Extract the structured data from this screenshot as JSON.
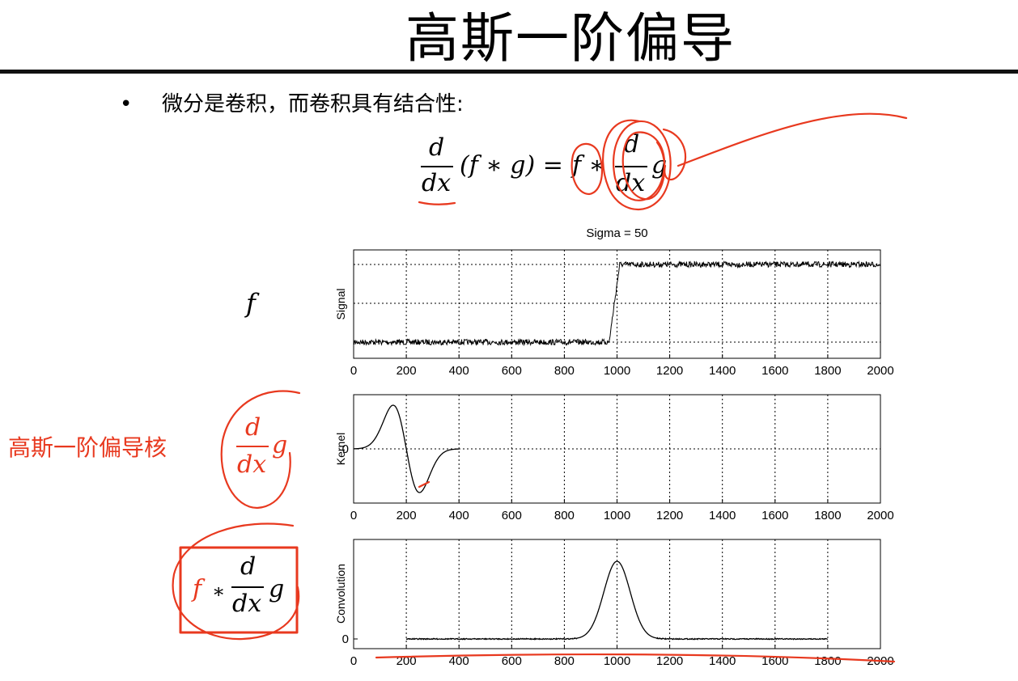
{
  "slide": {
    "title": "高斯一阶偏导",
    "bullet_marker": "•",
    "bullet_text": "微分是卷积，而卷积具有结合性:"
  },
  "equation": {
    "lhs_num": "d",
    "lhs_den": "dx",
    "lhs_body": "(f ∗ g) =",
    "rhs_f": "f ∗",
    "rhs_num": "d",
    "rhs_den": "dx",
    "rhs_g": "g"
  },
  "side_labels": {
    "row1": "f",
    "row2_text": "高斯一阶偏导核",
    "row2_num": "d",
    "row2_den": "dx",
    "row2_g": "g",
    "row3_f": "f",
    "row3_op": "∗",
    "row3_num": "d",
    "row3_den": "dx",
    "row3_g": "g"
  },
  "colors": {
    "annotation_red": "#e8391f",
    "plot_line": "#000000"
  },
  "chart_data": [
    {
      "type": "line",
      "title": "Sigma = 50",
      "ylabel": "Signal",
      "xlim": [
        0,
        2000
      ],
      "xticks": [
        0,
        200,
        400,
        600,
        800,
        1000,
        1200,
        1400,
        1600,
        1800,
        2000
      ],
      "yticks_labeled": [],
      "grid": true,
      "series": [
        {
          "description_points": [
            [
              0,
              0
            ],
            [
              970,
              0
            ],
            [
              1010,
              1
            ],
            [
              2000,
              1
            ]
          ],
          "noise": "small"
        }
      ]
    },
    {
      "type": "line",
      "ylabel": "Kernel",
      "xlim": [
        0,
        2000
      ],
      "xticks": [
        0,
        200,
        400,
        600,
        800,
        1000,
        1200,
        1400,
        1600,
        1800,
        2000
      ],
      "yticks_labeled": [
        "0"
      ],
      "grid": true,
      "series": [
        {
          "x": [
            0,
            400
          ],
          "shape": "derivative_of_gaussian",
          "center": 200,
          "sigma": 50,
          "peak_x": 150,
          "trough_x": 250
        }
      ]
    },
    {
      "type": "line",
      "ylabel": "Convolution",
      "xlim": [
        0,
        2000
      ],
      "xticks": [
        0,
        200,
        400,
        600,
        800,
        1000,
        1200,
        1400,
        1600,
        1800,
        2000
      ],
      "yticks_labeled": [
        "0"
      ],
      "grid": true,
      "series": [
        {
          "x": [
            200,
            1800
          ],
          "shape": "gaussian",
          "center": 1000,
          "sigma": 50
        }
      ]
    }
  ]
}
